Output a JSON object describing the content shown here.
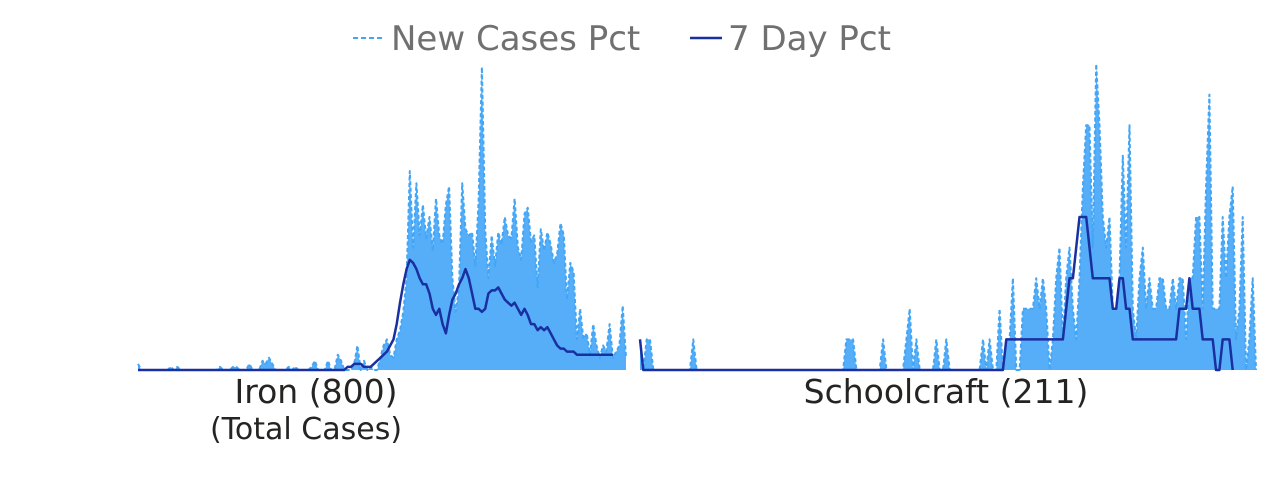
{
  "chart_data": {
    "type": "line",
    "legend": [
      {
        "name": "New Cases Pct",
        "style": "dashed",
        "color": "#42A5F5"
      },
      {
        "name": "7 Day Pct",
        "style": "solid",
        "color": "#1A2FA0"
      }
    ],
    "legend_position": "top",
    "grid": false,
    "area_color": "#56AEF9",
    "panels": [
      {
        "label": "Iron (800)",
        "sublabel": "(Total Cases)",
        "ylim": [
          0,
          1
        ],
        "new_cases": [
          0.02,
          0,
          0,
          0,
          0,
          0,
          0,
          0,
          0,
          0,
          0.01,
          0,
          0.01,
          0,
          0,
          0,
          0,
          0,
          0,
          0,
          0,
          0,
          0,
          0,
          0,
          0.01,
          0,
          0,
          0,
          0.01,
          0.01,
          0,
          0,
          0,
          0.02,
          0,
          0,
          0,
          0.03,
          0.02,
          0.04,
          0.02,
          0,
          0,
          0,
          0,
          0.01,
          0,
          0.01,
          0,
          0,
          0,
          0,
          0.01,
          0.03,
          0,
          0,
          0,
          0.03,
          0,
          0,
          0.05,
          0.03,
          0,
          0,
          0,
          0.02,
          0.08,
          0,
          0.03,
          0,
          0.01,
          0,
          0,
          0.04,
          0.08,
          0.1,
          0.05,
          0.04,
          0.1,
          0.13,
          0.19,
          0.3,
          0.65,
          0.4,
          0.61,
          0.44,
          0.54,
          0.43,
          0.5,
          0.39,
          0.56,
          0.44,
          0.41,
          0.54,
          0.6,
          0.3,
          0.19,
          0.27,
          0.61,
          0.46,
          0.44,
          0.45,
          0.34,
          0.55,
          0.99,
          0.46,
          0.3,
          0.44,
          0.34,
          0.45,
          0.41,
          0.5,
          0.44,
          0.43,
          0.56,
          0.4,
          0.36,
          0.51,
          0.53,
          0.42,
          0.44,
          0.27,
          0.46,
          0.39,
          0.45,
          0.41,
          0.35,
          0.38,
          0.48,
          0.44,
          0.23,
          0.35,
          0.32,
          0.1,
          0.2,
          0.1,
          0.12,
          0.05,
          0.15,
          0.08,
          0.04,
          0.08,
          0.06,
          0.15,
          0.04,
          0.06,
          0.08,
          0.21,
          0.04
        ],
        "seven_day": [
          0,
          0,
          0,
          0,
          0,
          0,
          0,
          0,
          0,
          0,
          0,
          0,
          0,
          0,
          0,
          0,
          0,
          0,
          0,
          0,
          0,
          0,
          0,
          0,
          0,
          0,
          0,
          0,
          0,
          0,
          0,
          0,
          0,
          0,
          0,
          0,
          0,
          0,
          0,
          0,
          0,
          0,
          0,
          0,
          0,
          0,
          0,
          0,
          0,
          0,
          0,
          0,
          0,
          0,
          0,
          0,
          0,
          0,
          0,
          0,
          0,
          0,
          0,
          0,
          0.01,
          0.01,
          0.02,
          0.02,
          0.02,
          0.01,
          0.01,
          0.01,
          0.02,
          0.03,
          0.04,
          0.05,
          0.06,
          0.08,
          0.1,
          0.15,
          0.22,
          0.28,
          0.33,
          0.36,
          0.35,
          0.33,
          0.3,
          0.28,
          0.28,
          0.25,
          0.2,
          0.18,
          0.2,
          0.15,
          0.12,
          0.18,
          0.23,
          0.25,
          0.28,
          0.3,
          0.33,
          0.3,
          0.25,
          0.2,
          0.2,
          0.19,
          0.2,
          0.25,
          0.26,
          0.26,
          0.27,
          0.25,
          0.23,
          0.22,
          0.21,
          0.22,
          0.2,
          0.18,
          0.2,
          0.18,
          0.15,
          0.15,
          0.13,
          0.14,
          0.13,
          0.14,
          0.12,
          0.1,
          0.08,
          0.07,
          0.07,
          0.06,
          0.06,
          0.06,
          0.05,
          0.05,
          0.05,
          0.05,
          0.05,
          0.05,
          0.05,
          0.05,
          0.05,
          0.05,
          0.05,
          0.05
        ]
      },
      {
        "label": "Schoolcraft (211)",
        "sublabel": "",
        "ylim": [
          0,
          1
        ],
        "new_cases": [
          0.1,
          0,
          0.1,
          0.1,
          0,
          0,
          0,
          0,
          0,
          0,
          0,
          0,
          0,
          0,
          0,
          0,
          0.1,
          0,
          0,
          0,
          0,
          0,
          0,
          0,
          0,
          0,
          0,
          0,
          0,
          0,
          0,
          0,
          0,
          0,
          0,
          0,
          0,
          0,
          0,
          0,
          0,
          0,
          0,
          0,
          0,
          0,
          0,
          0,
          0,
          0,
          0,
          0,
          0,
          0,
          0,
          0,
          0,
          0,
          0,
          0,
          0,
          0,
          0.1,
          0.1,
          0.1,
          0,
          0,
          0,
          0,
          0,
          0,
          0,
          0,
          0.1,
          0,
          0,
          0,
          0,
          0,
          0,
          0.1,
          0.2,
          0,
          0.1,
          0,
          0,
          0,
          0,
          0,
          0.1,
          0,
          0,
          0.1,
          0,
          0,
          0,
          0,
          0,
          0,
          0,
          0,
          0,
          0,
          0.1,
          0,
          0.1,
          0,
          0,
          0.2,
          0,
          0.1,
          0.1,
          0.3,
          0,
          0,
          0.2,
          0.2,
          0.2,
          0.2,
          0.3,
          0.2,
          0.3,
          0.2,
          0,
          0.1,
          0.3,
          0.4,
          0.1,
          0.3,
          0.4,
          0.2,
          0.1,
          0.3,
          0.6,
          0.8,
          0.8,
          0.4,
          1,
          0.8,
          0.5,
          0.4,
          0.5,
          0.2,
          0.2,
          0.3,
          0.7,
          0.4,
          0.8,
          0.2,
          0.1,
          0.3,
          0.4,
          0.2,
          0.3,
          0.2,
          0.2,
          0.3,
          0.3,
          0.2,
          0.2,
          0.3,
          0.2,
          0.3,
          0.3,
          0.1,
          0.3,
          0.3,
          0.5,
          0.5,
          0.2,
          0.6,
          0.9,
          0.2,
          0.2,
          0.2,
          0.5,
          0.3,
          0.5,
          0.6,
          0.1,
          0.2,
          0.5,
          0,
          0.1,
          0.3,
          0
        ],
        "seven_day": [
          0.1,
          0,
          0,
          0,
          0,
          0,
          0,
          0,
          0,
          0,
          0,
          0,
          0,
          0,
          0,
          0,
          0,
          0,
          0,
          0,
          0,
          0,
          0,
          0,
          0,
          0,
          0,
          0,
          0,
          0,
          0,
          0,
          0,
          0,
          0,
          0,
          0,
          0,
          0,
          0,
          0,
          0,
          0,
          0,
          0,
          0,
          0,
          0,
          0,
          0,
          0,
          0,
          0,
          0,
          0,
          0,
          0,
          0,
          0,
          0,
          0,
          0,
          0,
          0,
          0,
          0,
          0,
          0,
          0,
          0,
          0,
          0,
          0,
          0,
          0,
          0,
          0,
          0,
          0,
          0,
          0,
          0,
          0,
          0,
          0,
          0,
          0,
          0,
          0,
          0,
          0,
          0,
          0,
          0,
          0,
          0,
          0,
          0,
          0,
          0,
          0,
          0,
          0,
          0,
          0,
          0,
          0,
          0,
          0,
          0,
          0.1,
          0.1,
          0.1,
          0.1,
          0.1,
          0.1,
          0.1,
          0.1,
          0.1,
          0.1,
          0.1,
          0.1,
          0.1,
          0.1,
          0.1,
          0.1,
          0.1,
          0.1,
          0.2,
          0.3,
          0.3,
          0.4,
          0.5,
          0.5,
          0.5,
          0.4,
          0.3,
          0.3,
          0.3,
          0.3,
          0.3,
          0.3,
          0.2,
          0.2,
          0.3,
          0.3,
          0.2,
          0.2,
          0.1,
          0.1,
          0.1,
          0.1,
          0.1,
          0.1,
          0.1,
          0.1,
          0.1,
          0.1,
          0.1,
          0.1,
          0.1,
          0.1,
          0.2,
          0.2,
          0.2,
          0.3,
          0.2,
          0.2,
          0.2,
          0.1,
          0.1,
          0.1,
          0.1,
          0,
          0,
          0.1,
          0.1,
          0.1,
          0
        ]
      }
    ]
  }
}
